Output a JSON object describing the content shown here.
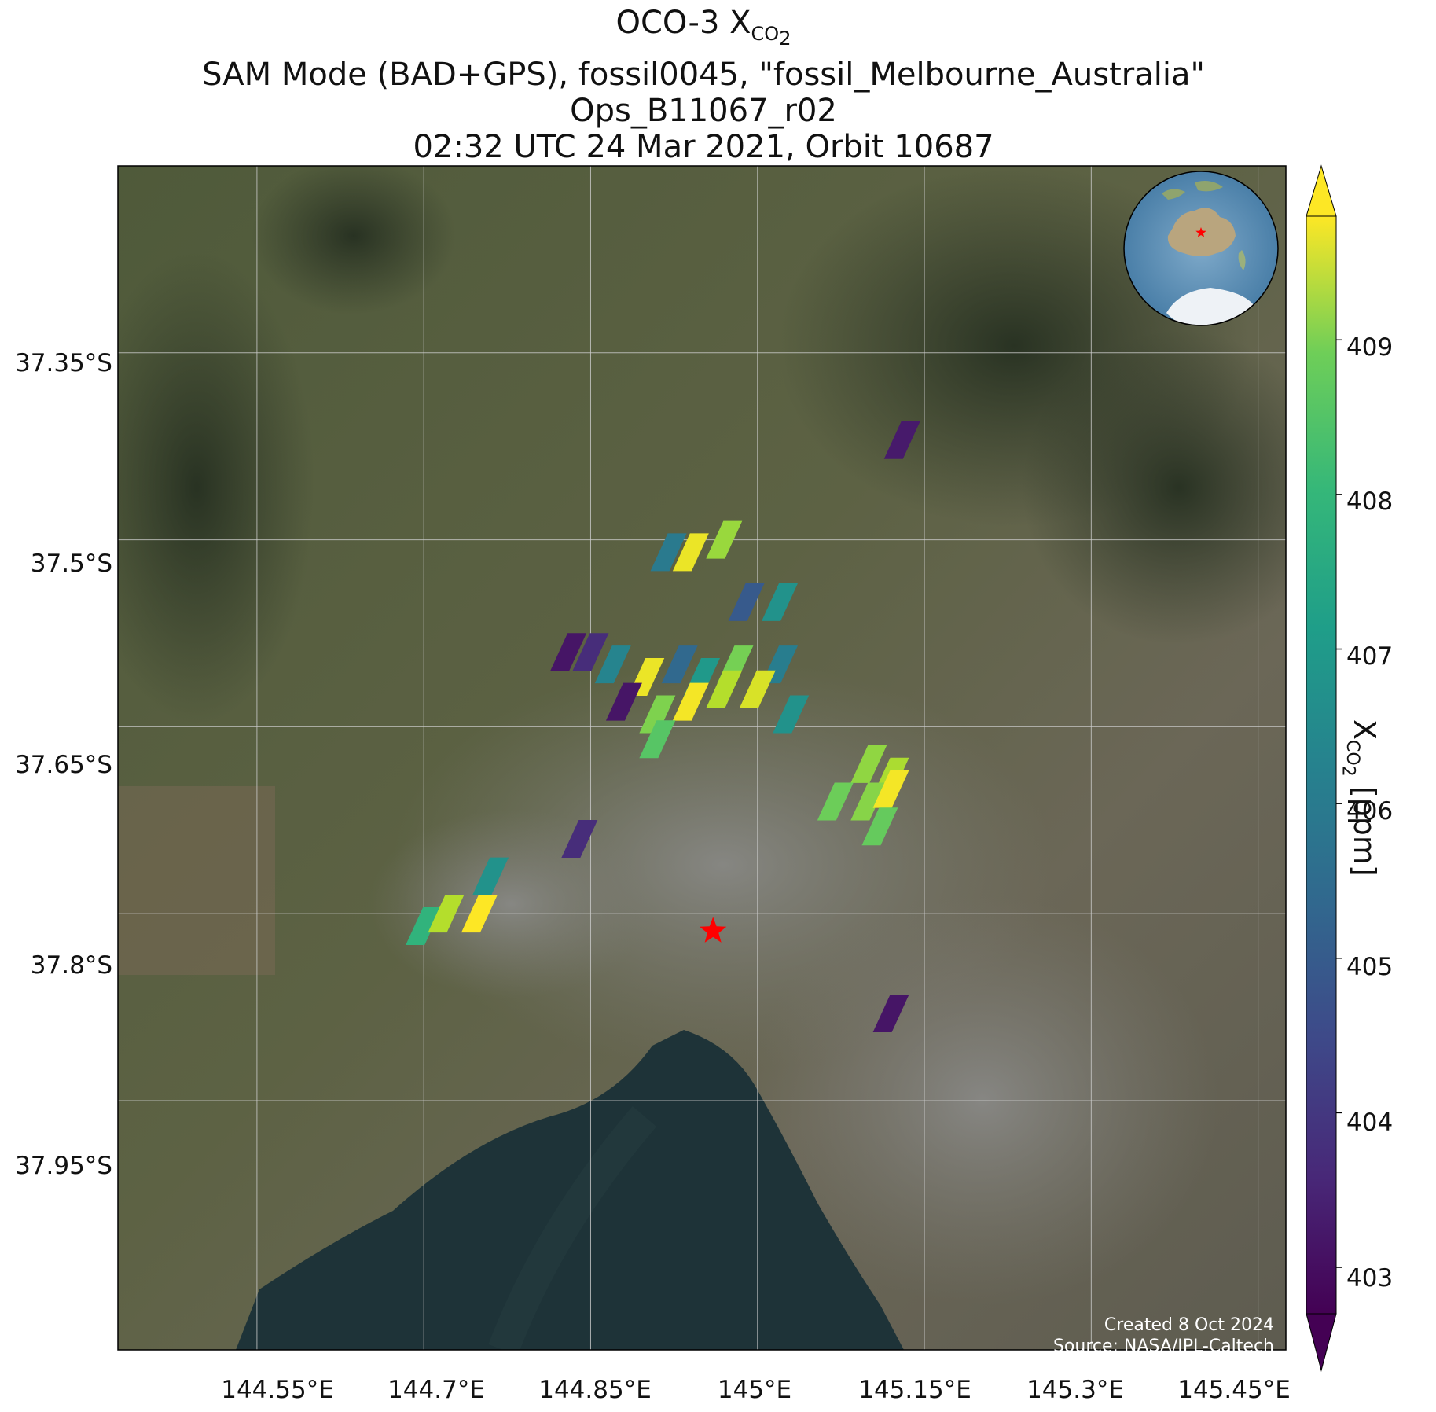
{
  "title": {
    "line1_main": "OCO-3 X",
    "line1_sub": "CO",
    "line1_sub2": "2",
    "line2": "SAM Mode (BAD+GPS), fossil0045, \"fossil_Melbourne_Australia\"",
    "line3": "Ops_B11067_r02",
    "line4": "02:32 UTC 24 Mar 2021, Orbit 10687"
  },
  "axes": {
    "x_ticks": [
      "144.55°E",
      "144.7°E",
      "144.85°E",
      "145°E",
      "145.15°E",
      "145.3°E",
      "145.45°E"
    ],
    "y_ticks": [
      "37.35°S",
      "37.5°S",
      "37.65°S",
      "37.8°S",
      "37.95°S"
    ]
  },
  "colorbar": {
    "title_main": "X",
    "title_sub": "CO",
    "title_sub2": "2",
    "title_units": " [ppm]",
    "ticks": [
      "403",
      "404",
      "405",
      "406",
      "407",
      "408",
      "409"
    ],
    "colormap": "viridis",
    "range": [
      402.7,
      409.8
    ],
    "extend": "both"
  },
  "credits": {
    "created": "Created 8 Oct 2024",
    "source": "Source: NASA/JPL-Caltech"
  },
  "colors": {
    "target_star": "#ff0000",
    "grid": "#cccccc"
  },
  "map_data": {
    "projection": "PlateCarree",
    "lon_range": [
      144.425,
      145.475
    ],
    "lat_range": [
      -38.15,
      -37.2
    ],
    "target": {
      "lon": 144.96,
      "lat": -37.814
    },
    "soundings": [
      {
        "lon": 144.97,
        "lat": -37.5,
        "xco2": 408.7
      },
      {
        "lon": 144.94,
        "lat": -37.51,
        "xco2": 409.6
      },
      {
        "lon": 144.92,
        "lat": -37.51,
        "xco2": 405.6
      },
      {
        "lon": 144.99,
        "lat": -37.55,
        "xco2": 404.7
      },
      {
        "lon": 145.02,
        "lat": -37.55,
        "xco2": 406.3
      },
      {
        "lon": 144.83,
        "lat": -37.59,
        "xco2": 403.1
      },
      {
        "lon": 144.85,
        "lat": -37.59,
        "xco2": 403.6
      },
      {
        "lon": 144.87,
        "lat": -37.6,
        "xco2": 405.9
      },
      {
        "lon": 144.9,
        "lat": -37.61,
        "xco2": 409.6
      },
      {
        "lon": 144.93,
        "lat": -37.6,
        "xco2": 405.1
      },
      {
        "lon": 144.95,
        "lat": -37.61,
        "xco2": 406.5
      },
      {
        "lon": 144.98,
        "lat": -37.6,
        "xco2": 408.3
      },
      {
        "lon": 145.02,
        "lat": -37.6,
        "xco2": 405.7
      },
      {
        "lon": 144.88,
        "lat": -37.63,
        "xco2": 403.1
      },
      {
        "lon": 144.91,
        "lat": -37.64,
        "xco2": 408.4
      },
      {
        "lon": 144.94,
        "lat": -37.63,
        "xco2": 409.7
      },
      {
        "lon": 144.97,
        "lat": -37.62,
        "xco2": 409.0
      },
      {
        "lon": 145.0,
        "lat": -37.62,
        "xco2": 409.4
      },
      {
        "lon": 145.03,
        "lat": -37.64,
        "xco2": 406.3
      },
      {
        "lon": 144.91,
        "lat": -37.66,
        "xco2": 407.9
      },
      {
        "lon": 145.1,
        "lat": -37.68,
        "xco2": 408.6
      },
      {
        "lon": 145.12,
        "lat": -37.69,
        "xco2": 408.9
      },
      {
        "lon": 145.07,
        "lat": -37.71,
        "xco2": 408.2
      },
      {
        "lon": 145.1,
        "lat": -37.71,
        "xco2": 408.5
      },
      {
        "lon": 145.12,
        "lat": -37.7,
        "xco2": 409.7
      },
      {
        "lon": 145.11,
        "lat": -37.73,
        "xco2": 408.1
      },
      {
        "lon": 144.84,
        "lat": -37.74,
        "xco2": 403.6
      },
      {
        "lon": 144.76,
        "lat": -37.77,
        "xco2": 406.3
      },
      {
        "lon": 144.7,
        "lat": -37.81,
        "xco2": 407.3
      },
      {
        "lon": 144.72,
        "lat": -37.8,
        "xco2": 409.0
      },
      {
        "lon": 144.75,
        "lat": -37.8,
        "xco2": 409.8
      },
      {
        "lon": 145.13,
        "lat": -37.42,
        "xco2": 403.2
      },
      {
        "lon": 145.12,
        "lat": -37.88,
        "xco2": 403.1
      }
    ]
  }
}
